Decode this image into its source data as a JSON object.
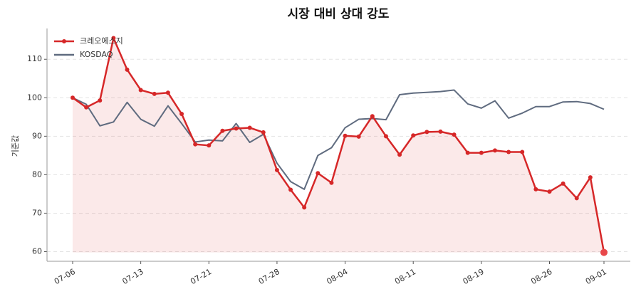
{
  "chart_data": {
    "type": "line",
    "title": "시장 대비 상대 강도",
    "y_label": "기준값",
    "categories": [
      "07-06",
      null,
      null,
      null,
      null,
      "07-13",
      null,
      null,
      null,
      null,
      "07-21",
      null,
      null,
      null,
      null,
      "07-28",
      null,
      null,
      null,
      null,
      "08-04",
      null,
      null,
      null,
      null,
      "08-11",
      null,
      null,
      null,
      null,
      "08-19",
      null,
      null,
      null,
      null,
      "08-26",
      null,
      null,
      null,
      "09-01"
    ],
    "series": [
      {
        "name": "크레오에스지",
        "color": "#d62728",
        "values": [
          100,
          97.5,
          99.3,
          115.5,
          107.3,
          102,
          101,
          101.3,
          95.8,
          87.9,
          87.6,
          91.4,
          92,
          92.2,
          91,
          81.2,
          76.1,
          71.5,
          80.4,
          77.9,
          90.1,
          89.9,
          95.2,
          90,
          85.2,
          90.2,
          91.1,
          91.2,
          90.4,
          85.7,
          85.7,
          86.3,
          85.9,
          85.9,
          76.2,
          75.6,
          77.7,
          73.9,
          79.3,
          59.8
        ]
      },
      {
        "name": "KOSDAQ",
        "color": "#5f6b7f",
        "values": [
          100,
          98.3,
          92.7,
          93.7,
          98.8,
          94.4,
          92.6,
          97.9,
          93.3,
          88.5,
          89,
          88.8,
          93.3,
          88.4,
          90.5,
          83,
          78.2,
          76.2,
          85,
          87,
          92.2,
          94.4,
          94.6,
          94.3,
          100.8,
          101.2,
          101.4,
          101.6,
          102,
          98.4,
          97.3,
          99.2,
          94.7,
          96,
          97.7,
          97.7,
          98.9,
          99,
          98.5,
          97
        ]
      }
    ],
    "ylim": [
      57.5,
      118
    ],
    "yticks": [
      60,
      70,
      80,
      90,
      100,
      110
    ],
    "grid": true,
    "legend": "upper left"
  }
}
